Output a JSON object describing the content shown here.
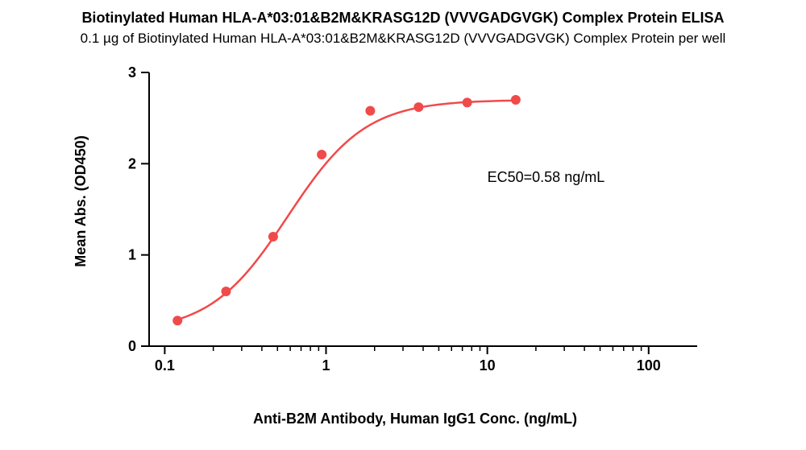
{
  "title": "Biotinylated Human HLA-A*03:01&B2M&KRASG12D (VVVGADGVGK) Complex Protein ELISA",
  "subtitle": "0.1 µg of Biotinylated Human HLA-A*03:01&B2M&KRASG12D (VVVGADGVGK) Complex Protein per well",
  "xlabel": "Anti-B2M Antibody, Human IgG1 Conc. (ng/mL)",
  "ylabel": "Mean Abs. (OD450)",
  "annotation": "EC50=0.58 ng/mL",
  "annotation_pos_x": 10,
  "annotation_pos_y": 1.85,
  "chart": {
    "type": "line-scatter-logx",
    "x_scale": "log",
    "xlim": [
      0.08,
      200
    ],
    "ylim": [
      0,
      3
    ],
    "x_major_ticks": [
      0.1,
      1,
      10,
      100
    ],
    "x_major_labels": [
      "0.1",
      "1",
      "10",
      "100"
    ],
    "y_major_ticks": [
      0,
      1,
      2,
      3
    ],
    "y_major_labels": [
      "0",
      "1",
      "2",
      "3"
    ],
    "major_tick_len": 10,
    "minor_tick_len": 6,
    "axis_color": "#000000",
    "axis_width": 2,
    "background": "#ffffff",
    "grid": false,
    "series": {
      "color": "#f14a4a",
      "marker": "circle",
      "marker_radius": 6,
      "line_width": 2.5,
      "points": [
        {
          "x": 0.12,
          "y": 0.28
        },
        {
          "x": 0.24,
          "y": 0.6
        },
        {
          "x": 0.47,
          "y": 1.2
        },
        {
          "x": 0.94,
          "y": 2.1
        },
        {
          "x": 1.88,
          "y": 2.58
        },
        {
          "x": 3.75,
          "y": 2.62
        },
        {
          "x": 7.5,
          "y": 2.67
        },
        {
          "x": 15.0,
          "y": 2.7
        }
      ],
      "fit": {
        "bottom": 0.15,
        "top": 2.7,
        "ec50": 0.58,
        "hill": 1.8
      }
    },
    "title_fontsize": 18,
    "subtitle_fontsize": 17,
    "label_fontsize": 18,
    "tick_fontsize": 18,
    "tick_fontweight": "bold"
  }
}
